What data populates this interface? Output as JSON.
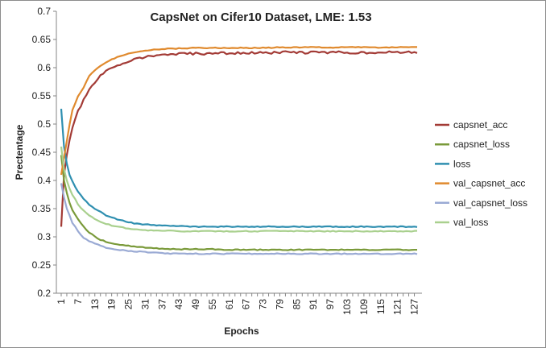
{
  "chart_data": {
    "type": "line",
    "title": "CapsNet on Cifer10 Dataset, LME: 1.53",
    "xlabel": "Epochs",
    "ylabel": "Prectentage",
    "ylim": [
      0.2,
      0.7
    ],
    "y_ticks": [
      "0.2",
      "0.25",
      "0.3",
      "0.35",
      "0.4",
      "0.45",
      "0.5",
      "0.55",
      "0.6",
      "0.65",
      "0.7"
    ],
    "x_range": [
      1,
      128
    ],
    "x_ticks": [
      "1",
      "7",
      "13",
      "19",
      "25",
      "31",
      "37",
      "43",
      "49",
      "55",
      "61",
      "67",
      "73",
      "79",
      "85",
      "91",
      "97",
      "103",
      "109",
      "115",
      "121",
      "127"
    ],
    "grid": false,
    "legend_position": "right",
    "series": [
      {
        "name": "capsnet_acc",
        "color": "#a33b36",
        "x": [
          1,
          2,
          3,
          4,
          5,
          7,
          9,
          11,
          13,
          15,
          17,
          19,
          22,
          25,
          28,
          31,
          34,
          37,
          43,
          49,
          55,
          61,
          67,
          73,
          79,
          85,
          91,
          97,
          103,
          109,
          115,
          121,
          127,
          128
        ],
        "values": [
          0.318,
          0.41,
          0.445,
          0.47,
          0.495,
          0.522,
          0.542,
          0.56,
          0.574,
          0.585,
          0.593,
          0.6,
          0.606,
          0.612,
          0.616,
          0.619,
          0.621,
          0.623,
          0.624,
          0.625,
          0.625,
          0.626,
          0.626,
          0.626,
          0.627,
          0.627,
          0.627,
          0.627,
          0.627,
          0.627,
          0.627,
          0.627,
          0.627,
          0.625
        ]
      },
      {
        "name": "capsnet_loss",
        "color": "#7a9a3a",
        "x": [
          1,
          2,
          3,
          4,
          5,
          7,
          9,
          11,
          13,
          15,
          17,
          19,
          22,
          25,
          28,
          31,
          34,
          37,
          43,
          49,
          55,
          61,
          67,
          73,
          79,
          85,
          91,
          97,
          103,
          109,
          115,
          121,
          127,
          128
        ],
        "values": [
          0.445,
          0.4,
          0.378,
          0.36,
          0.348,
          0.332,
          0.318,
          0.308,
          0.3,
          0.295,
          0.291,
          0.289,
          0.286,
          0.284,
          0.282,
          0.281,
          0.28,
          0.279,
          0.278,
          0.278,
          0.278,
          0.277,
          0.277,
          0.277,
          0.277,
          0.277,
          0.277,
          0.277,
          0.277,
          0.277,
          0.277,
          0.277,
          0.277,
          0.277
        ]
      },
      {
        "name": "loss",
        "color": "#2f8fb0",
        "x": [
          1,
          2,
          3,
          4,
          5,
          7,
          9,
          11,
          13,
          15,
          17,
          19,
          22,
          25,
          28,
          31,
          34,
          37,
          43,
          49,
          55,
          61,
          67,
          73,
          79,
          85,
          91,
          97,
          103,
          109,
          115,
          121,
          127,
          128
        ],
        "values": [
          0.527,
          0.46,
          0.43,
          0.41,
          0.398,
          0.38,
          0.367,
          0.357,
          0.35,
          0.344,
          0.338,
          0.334,
          0.33,
          0.326,
          0.323,
          0.322,
          0.321,
          0.32,
          0.319,
          0.318,
          0.318,
          0.318,
          0.318,
          0.318,
          0.318,
          0.318,
          0.318,
          0.318,
          0.318,
          0.318,
          0.318,
          0.318,
          0.318,
          0.318
        ]
      },
      {
        "name": "val_capsnet_acc",
        "color": "#e08a2e",
        "x": [
          1,
          2,
          3,
          4,
          5,
          7,
          9,
          11,
          13,
          15,
          17,
          19,
          22,
          25,
          28,
          31,
          34,
          37,
          43,
          49,
          55,
          61,
          67,
          73,
          79,
          85,
          91,
          97,
          103,
          109,
          115,
          121,
          127,
          128
        ],
        "values": [
          0.41,
          0.44,
          0.47,
          0.5,
          0.525,
          0.55,
          0.565,
          0.585,
          0.595,
          0.603,
          0.61,
          0.615,
          0.62,
          0.625,
          0.628,
          0.63,
          0.632,
          0.633,
          0.634,
          0.635,
          0.635,
          0.635,
          0.635,
          0.635,
          0.636,
          0.636,
          0.636,
          0.636,
          0.636,
          0.636,
          0.636,
          0.636,
          0.636,
          0.636
        ]
      },
      {
        "name": "val_capsnet_loss",
        "color": "#9aaad4",
        "x": [
          1,
          2,
          3,
          4,
          5,
          7,
          9,
          11,
          13,
          15,
          17,
          19,
          22,
          25,
          28,
          31,
          34,
          37,
          43,
          49,
          55,
          61,
          67,
          73,
          79,
          85,
          91,
          97,
          103,
          109,
          115,
          121,
          127,
          128
        ],
        "values": [
          0.395,
          0.37,
          0.35,
          0.338,
          0.325,
          0.31,
          0.298,
          0.292,
          0.288,
          0.284,
          0.281,
          0.279,
          0.277,
          0.275,
          0.274,
          0.273,
          0.272,
          0.271,
          0.27,
          0.27,
          0.27,
          0.27,
          0.27,
          0.27,
          0.27,
          0.27,
          0.27,
          0.27,
          0.27,
          0.27,
          0.27,
          0.27,
          0.27,
          0.27
        ]
      },
      {
        "name": "val_loss",
        "color": "#a9d08e",
        "x": [
          1,
          2,
          3,
          4,
          5,
          7,
          9,
          11,
          13,
          15,
          17,
          19,
          22,
          25,
          28,
          31,
          34,
          37,
          43,
          49,
          55,
          61,
          67,
          73,
          79,
          85,
          91,
          97,
          103,
          109,
          115,
          121,
          127,
          128
        ],
        "values": [
          0.46,
          0.42,
          0.4,
          0.385,
          0.375,
          0.358,
          0.346,
          0.338,
          0.332,
          0.327,
          0.323,
          0.32,
          0.317,
          0.315,
          0.313,
          0.312,
          0.311,
          0.311,
          0.31,
          0.31,
          0.31,
          0.31,
          0.31,
          0.31,
          0.31,
          0.31,
          0.31,
          0.31,
          0.31,
          0.31,
          0.31,
          0.31,
          0.31,
          0.31
        ]
      }
    ]
  }
}
